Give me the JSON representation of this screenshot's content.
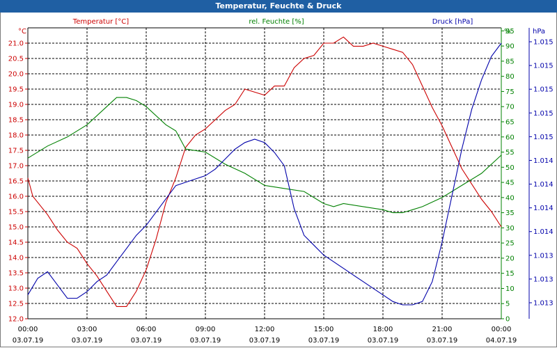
{
  "title": "Temperatur, Feuchte & Druck",
  "colors": {
    "temperature": "#cc0000",
    "humidity": "#008000",
    "pressure": "#0000aa",
    "titlebar": "#1f5fa3"
  },
  "chart_data": {
    "type": "line",
    "grid": true,
    "x_ticks": [
      {
        "time": "00:00",
        "date": "03.07.19"
      },
      {
        "time": "03:00",
        "date": "03.07.19"
      },
      {
        "time": "06:00",
        "date": "03.07.19"
      },
      {
        "time": "09:00",
        "date": "03.07.19"
      },
      {
        "time": "12:00",
        "date": "03.07.19"
      },
      {
        "time": "15:00",
        "date": "03.07.19"
      },
      {
        "time": "18:00",
        "date": "03.07.19"
      },
      {
        "time": "21:00",
        "date": "03.07.19"
      },
      {
        "time": "00:00",
        "date": "04.07.19"
      }
    ],
    "axes": {
      "temperature": {
        "label": "Temperatur [°C]",
        "unit": "°C",
        "ylim": [
          12.0,
          21.5
        ],
        "ticks": [
          "12.0",
          "12.5",
          "13.0",
          "13.5",
          "14.0",
          "14.5",
          "15.0",
          "15.5",
          "16.0",
          "16.5",
          "17.0",
          "17.5",
          "18.0",
          "18.5",
          "19.0",
          "19.5",
          "20.0",
          "20.5",
          "21.0"
        ]
      },
      "humidity": {
        "label": "rel. Feuchte [%]",
        "unit": "%",
        "ylim": [
          0,
          96
        ],
        "ticks": [
          "0",
          "5",
          "10",
          "15",
          "20",
          "25",
          "30",
          "35",
          "40",
          "45",
          "50",
          "55",
          "60",
          "65",
          "70",
          "75",
          "80",
          "85",
          "90",
          "95"
        ]
      },
      "pressure": {
        "label": "Druck [hPa]",
        "unit": "hPa",
        "ticks": [
          "1.013",
          "1.013",
          "1.013",
          "1.014",
          "1.014",
          "1.014",
          "1.014",
          "1.015",
          "1.015",
          "1.015",
          "1.015",
          "1.015"
        ]
      }
    },
    "series": [
      {
        "name": "Temperatur [°C]",
        "axis": "temperature",
        "x": [
          0,
          0.25,
          0.5,
          1,
          1.5,
          2,
          2.5,
          3,
          3.5,
          4,
          4.5,
          5,
          5.5,
          6,
          6.5,
          7,
          7.5,
          8,
          8.5,
          9,
          9.5,
          10,
          10.5,
          11,
          11.5,
          12,
          12.5,
          13,
          13.5,
          14,
          14.5,
          15,
          15.5,
          16,
          16.5,
          17,
          17.5,
          18,
          18.5,
          19,
          19.5,
          20,
          20.5,
          21,
          21.5,
          22,
          22.5,
          23,
          23.5,
          24
        ],
        "values": [
          16.6,
          16.0,
          15.8,
          15.4,
          14.9,
          14.5,
          14.3,
          13.8,
          13.4,
          12.9,
          12.4,
          12.4,
          12.9,
          13.6,
          14.6,
          15.8,
          16.6,
          17.6,
          18.0,
          18.2,
          18.5,
          18.8,
          19.0,
          19.5,
          19.4,
          19.3,
          19.6,
          19.6,
          20.2,
          20.5,
          20.6,
          21.0,
          21.0,
          21.2,
          20.9,
          20.9,
          21.0,
          20.9,
          20.8,
          20.7,
          20.3,
          19.6,
          18.9,
          18.3,
          17.6,
          16.9,
          16.4,
          15.9,
          15.5,
          15.0
        ]
      },
      {
        "name": "rel. Feuchte [%]",
        "axis": "humidity",
        "x": [
          0,
          1,
          2,
          3,
          4,
          4.5,
          5,
          5.5,
          6,
          7,
          7.5,
          8,
          9,
          10,
          11,
          12,
          13,
          14,
          15,
          15.5,
          16,
          17,
          18,
          18.5,
          19,
          19.5,
          20,
          21,
          22,
          23,
          24
        ],
        "values": [
          53,
          57,
          60,
          64,
          70,
          73,
          73,
          72,
          70,
          64,
          62,
          56,
          55,
          51,
          48,
          44,
          43,
          42,
          38,
          37,
          38,
          37,
          36,
          35,
          35,
          36,
          37,
          40,
          44,
          48,
          54
        ]
      },
      {
        "name": "Druck [hPa]",
        "axis": "pressure",
        "x": [
          0,
          0.5,
          1,
          1.5,
          2,
          2.5,
          3,
          3.5,
          4,
          4.5,
          5,
          5.5,
          6,
          6.5,
          7,
          7.5,
          8,
          8.5,
          9,
          9.5,
          10,
          10.5,
          11,
          11.5,
          12,
          12.5,
          13,
          13.5,
          14,
          14.5,
          15,
          15.5,
          16,
          16.5,
          17,
          17.5,
          18,
          18.5,
          19,
          19.5,
          20,
          20.5,
          21,
          21.5,
          22,
          22.5,
          23,
          23.5,
          24
        ],
        "values": [
          1013.4,
          1013.9,
          1014.1,
          1013.7,
          1013.3,
          1013.3,
          1013.5,
          1013.8,
          1014.0,
          1014.4,
          1014.8,
          1015.2,
          1015.5,
          1015.9,
          1016.3,
          1016.7,
          1016.8,
          1016.9,
          1017.0,
          1017.2,
          1017.5,
          1017.8,
          1018.0,
          1018.1,
          1018.0,
          1017.7,
          1017.3,
          1016.0,
          1015.2,
          1014.9,
          1014.6,
          1014.4,
          1014.2,
          1014.0,
          1013.8,
          1013.6,
          1013.4,
          1013.2,
          1013.1,
          1013.1,
          1013.2,
          1013.8,
          1015.0,
          1016.4,
          1017.8,
          1019.0,
          1019.9,
          1020.6,
          1021.0
        ]
      }
    ]
  }
}
